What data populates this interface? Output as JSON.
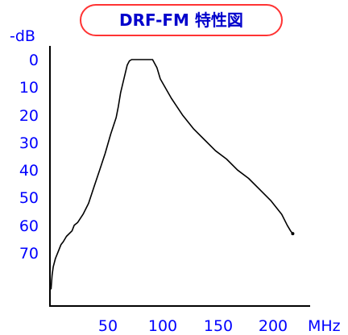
{
  "colors": {
    "title_border": "#ff3333",
    "title_text": "#0000cc",
    "axis_label": "#0000ff",
    "axis_line": "#000000",
    "curve": "#000000",
    "background": "#ffffff"
  },
  "chart_data": {
    "type": "line",
    "title": "DRF-FM 特性図",
    "xlabel": "MHz",
    "ylabel": "-dB",
    "xlim": [
      0,
      235
    ],
    "ylim": [
      0,
      90
    ],
    "y_inverted": true,
    "grid": false,
    "legend": "none",
    "x_ticks": [
      "50",
      "100",
      "150",
      "200"
    ],
    "y_ticks": [
      "0",
      "10",
      "20",
      "30",
      "40",
      "50",
      "60",
      "70"
    ],
    "series": [
      {
        "x": [
          1,
          2,
          3,
          5,
          7,
          10,
          12,
          15,
          20,
          22,
          25,
          30,
          35,
          40,
          45,
          50,
          55,
          60,
          62,
          64,
          67,
          70,
          72,
          74,
          78,
          80,
          85,
          90,
          93,
          97,
          100,
          110,
          120,
          130,
          140,
          150,
          160,
          170,
          180,
          190,
          200,
          210,
          215,
          218,
          220
        ],
        "y": [
          83,
          78,
          75,
          72,
          70,
          67,
          66,
          64,
          62,
          60,
          59,
          56,
          52,
          46,
          40,
          34,
          27,
          21,
          17,
          12,
          7,
          2,
          0.5,
          0,
          0,
          0,
          0,
          0,
          0,
          3,
          7,
          14,
          20,
          25,
          29,
          33,
          36,
          40,
          43,
          47,
          51,
          56,
          60,
          62,
          63
        ]
      }
    ]
  }
}
